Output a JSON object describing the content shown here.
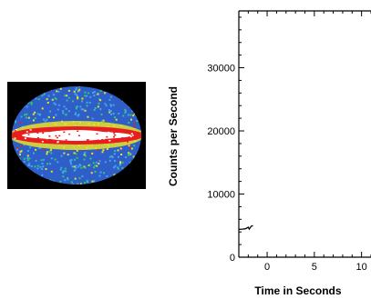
{
  "sky_map": {
    "icon": "all-sky-map-icon",
    "colors": {
      "background": "#000000",
      "sky_base": "#2f5ec8",
      "noise_light": "#3fa8e6",
      "noise_green": "#2fc86a",
      "mid_band": "#e8e22a",
      "red_band": "#e81e1e",
      "core_band": "#ffffff"
    }
  },
  "chart_data": {
    "type": "line",
    "xlabel": "Time in Seconds",
    "ylabel": "Counts per Second",
    "xlim": [
      -3,
      11
    ],
    "ylim": [
      0,
      39000
    ],
    "x_ticks": [
      0,
      5,
      10
    ],
    "y_ticks": [
      0,
      10000,
      20000,
      30000
    ],
    "series": [
      {
        "color": "#000000",
        "x": [
          -3.0,
          -2.6,
          -2.3,
          -2.0,
          -1.9,
          -1.7,
          -1.5
        ],
        "y": [
          4400,
          4450,
          4500,
          4750,
          4450,
          4900,
          5000
        ]
      }
    ]
  }
}
